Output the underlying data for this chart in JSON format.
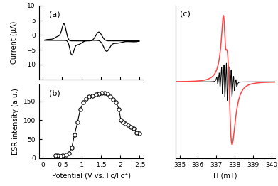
{
  "panel_a": {
    "label": "(a)",
    "ylabel": "Current (μA)",
    "ylim": [
      -15,
      10
    ],
    "yticks": [
      -10,
      -5,
      0,
      5,
      10
    ],
    "xlim": [
      0.1,
      -2.6
    ],
    "xticks": [
      0.0,
      -0.5,
      -1.0,
      -1.5,
      -2.0,
      -2.5
    ]
  },
  "panel_b": {
    "label": "(b)",
    "ylabel": "ESR intensity (a.u.)",
    "ylim": [
      0,
      195
    ],
    "yticks": [
      0,
      50,
      100,
      150
    ],
    "xlim": [
      0.1,
      -2.6
    ],
    "xticks": [
      0.0,
      -0.5,
      -1.0,
      -1.5,
      -2.0,
      -2.5
    ],
    "xticklabels": [
      "0",
      "-0.5",
      "-1",
      "-1.5",
      "-2",
      "-2.5"
    ],
    "xlabel": "Potential (V vs. Fc/Fc⁺)"
  },
  "panel_c": {
    "label": "(c)",
    "xlabel": "H (mT)",
    "xlim": [
      334.8,
      340.2
    ],
    "xticks": [
      335,
      336,
      337,
      338,
      339,
      340
    ]
  },
  "background_color": "#ffffff"
}
